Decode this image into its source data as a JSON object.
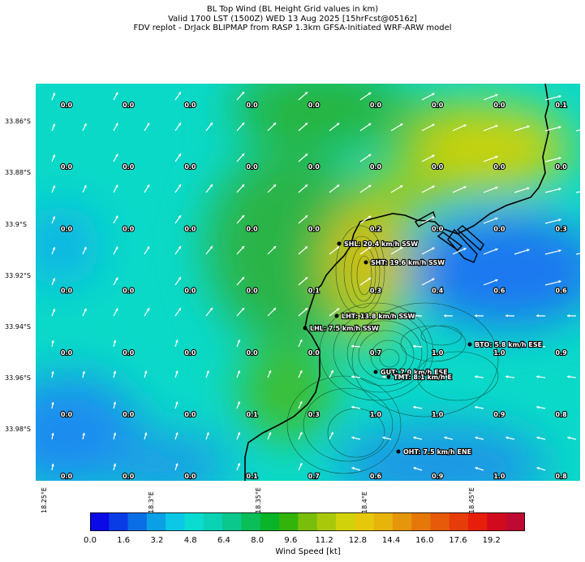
{
  "title_lines": [
    "BL Top Wind (BL Height Grid values in km)",
    "Valid 1700 LST (1500Z) WED 13 Aug 2025 [15hrFcst@0516z]",
    "FDV replot - DrJack BLIPMAP from RASP 1.3km GFSA-Initiated WRF-ARW model"
  ],
  "y_axis_labels": [
    "33.86°S",
    "33.88°S",
    "33.9°S",
    "33.92°S",
    "33.94°S",
    "33.96°S",
    "33.98°S"
  ],
  "x_axis_labels": [
    "18.25°E",
    "18.3°E",
    "18.35°E",
    "18.4°E",
    "18.45°E"
  ],
  "grid_values": [
    [
      "0.0",
      "0.0",
      "0.0",
      "0.0",
      "0.0",
      "0.0",
      "0.0",
      "0.0",
      "0.1"
    ],
    [
      "0.0",
      "0.0",
      "0.0",
      "0.0",
      "0.0",
      "0.0",
      "0.0",
      "0.0",
      "0.0"
    ],
    [
      "0.0",
      "0.0",
      "0.0",
      "0.0",
      "0.0",
      "0.2",
      "0.0",
      "0.0",
      "0.3"
    ],
    [
      "0.0",
      "0.0",
      "0.0",
      "0.0",
      "0.1",
      "0.3",
      "0.4",
      "0.6",
      "0.6"
    ],
    [
      "0.0",
      "0.0",
      "0.0",
      "0.0",
      "0.0",
      "0.7",
      "1.0",
      "1.0",
      "0.9"
    ],
    [
      "0.0",
      "0.0",
      "0.0",
      "0.1",
      "0.3",
      "1.0",
      "1.0",
      "0.9",
      "0.8"
    ],
    [
      "0.0",
      "0.0",
      "0.0",
      "0.1",
      "0.7",
      "0.6",
      "0.9",
      "1.0",
      "0.8"
    ]
  ],
  "stations": [
    {
      "label": "SHL: 20.4 km/h SSW"
    },
    {
      "label": "SHT: 19.6 km/h SSW"
    },
    {
      "label": "LHT: 13.8 km/h SSW"
    },
    {
      "label": "LHL: 7.5 km/h SSW"
    },
    {
      "label": "BTO: 5.8 km/h ESE"
    },
    {
      "label": "GUT: 7.0 km/h ESE"
    },
    {
      "label": "TMT: 8.1 km/h E"
    },
    {
      "label": "OHT: 7.5 km/h ENE"
    }
  ],
  "colorbar": {
    "label": "Wind Speed [kt]",
    "ticks": [
      "0.0",
      "1.6",
      "3.2",
      "4.8",
      "6.4",
      "8.0",
      "9.6",
      "11.2",
      "12.8",
      "14.4",
      "16.0",
      "17.6",
      "19.2"
    ],
    "colors": [
      "#0a0ae6",
      "#0a3ce6",
      "#0a6ee6",
      "#0aa0e6",
      "#0ac8e6",
      "#0adcd2",
      "#0ad2b4",
      "#0ac88c",
      "#0abe5a",
      "#0ab428",
      "#32b40a",
      "#78be0a",
      "#aac80a",
      "#d2d20a",
      "#e6c80a",
      "#e6b40a",
      "#e6960a",
      "#e6780a",
      "#e65a0a",
      "#e63c0a",
      "#e61e0a",
      "#d20a1e",
      "#be0a32"
    ]
  },
  "map_colors": {
    "cyan": "#0ad9c8",
    "blue": "#1e8cf0",
    "green": "#28b43c",
    "yellow": "#c8d20a",
    "orange": "#d2b40a"
  }
}
